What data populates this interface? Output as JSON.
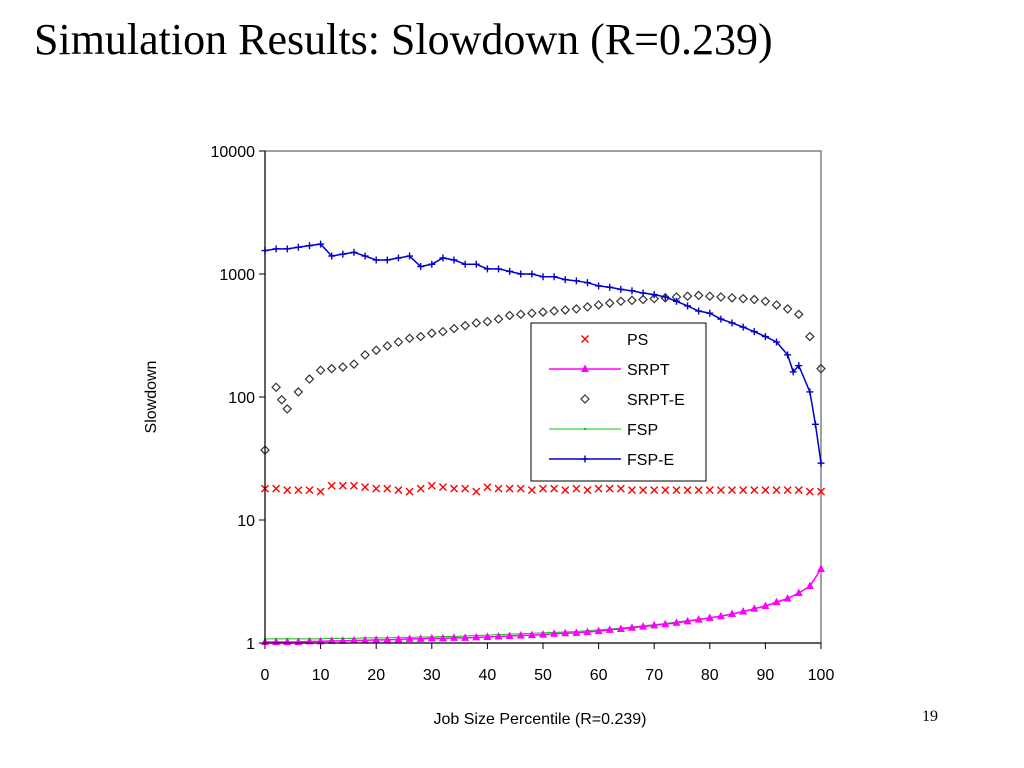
{
  "slide": {
    "title": "Simulation Results: Slowdown (R=0.239)",
    "page_number": "19"
  },
  "chart_data": {
    "type": "line",
    "title": "",
    "xlabel": "Job Size Percentile (R=0.239)",
    "ylabel": "Slowdown",
    "xlim": [
      0,
      100
    ],
    "ylim": [
      1,
      10000
    ],
    "yscale": "log",
    "x_ticks": [
      0,
      10,
      20,
      30,
      40,
      50,
      60,
      70,
      80,
      90,
      100
    ],
    "y_ticks": [
      1,
      10,
      100,
      1000,
      10000
    ],
    "grid": false,
    "legend_position": "center-right",
    "series": [
      {
        "name": "PS",
        "color": "#ff0000",
        "marker": "x",
        "line": false,
        "x": [
          0,
          2,
          4,
          6,
          8,
          10,
          12,
          14,
          16,
          18,
          20,
          22,
          24,
          26,
          28,
          30,
          32,
          34,
          36,
          38,
          40,
          42,
          44,
          46,
          48,
          50,
          52,
          54,
          56,
          58,
          60,
          62,
          64,
          66,
          68,
          70,
          72,
          74,
          76,
          78,
          80,
          82,
          84,
          86,
          88,
          90,
          92,
          94,
          96,
          98,
          100
        ],
        "values": [
          18,
          18,
          17.5,
          17.5,
          17.5,
          17,
          19,
          19,
          19,
          18.5,
          18,
          18,
          17.5,
          17,
          18,
          19,
          18.5,
          18,
          18,
          17,
          18.5,
          18,
          18,
          18,
          17.5,
          18,
          18,
          17.5,
          18,
          17.5,
          18,
          18,
          18,
          17.5,
          17.5,
          17.5,
          17.5,
          17.5,
          17.5,
          17.5,
          17.5,
          17.5,
          17.5,
          17.5,
          17.5,
          17.5,
          17.5,
          17.5,
          17.5,
          17,
          17
        ]
      },
      {
        "name": "SRPT",
        "color": "#ff00ff",
        "marker": "triangle",
        "line": true,
        "x": [
          0,
          2,
          4,
          6,
          8,
          10,
          12,
          14,
          16,
          18,
          20,
          22,
          24,
          26,
          28,
          30,
          32,
          34,
          36,
          38,
          40,
          42,
          44,
          46,
          48,
          50,
          52,
          54,
          56,
          58,
          60,
          62,
          64,
          66,
          68,
          70,
          72,
          74,
          76,
          78,
          80,
          82,
          84,
          86,
          88,
          90,
          92,
          94,
          96,
          98,
          100
        ],
        "values": [
          1.02,
          1.02,
          1.02,
          1.02,
          1.03,
          1.03,
          1.04,
          1.04,
          1.05,
          1.05,
          1.06,
          1.06,
          1.07,
          1.08,
          1.08,
          1.09,
          1.09,
          1.1,
          1.1,
          1.11,
          1.12,
          1.13,
          1.14,
          1.15,
          1.16,
          1.17,
          1.19,
          1.2,
          1.21,
          1.23,
          1.25,
          1.28,
          1.3,
          1.33,
          1.36,
          1.39,
          1.42,
          1.46,
          1.5,
          1.55,
          1.6,
          1.65,
          1.72,
          1.8,
          1.9,
          2.0,
          2.15,
          2.3,
          2.55,
          2.9,
          4.0
        ]
      },
      {
        "name": "SRPT-E",
        "color": "#333333",
        "marker": "diamond",
        "line": false,
        "x": [
          0,
          2,
          3,
          4,
          6,
          8,
          10,
          12,
          14,
          16,
          18,
          20,
          22,
          24,
          26,
          28,
          30,
          32,
          34,
          36,
          38,
          40,
          42,
          44,
          46,
          48,
          50,
          52,
          54,
          56,
          58,
          60,
          62,
          64,
          66,
          68,
          70,
          72,
          74,
          76,
          78,
          80,
          82,
          84,
          86,
          88,
          90,
          92,
          94,
          96,
          98,
          100
        ],
        "values": [
          37,
          120,
          95,
          80,
          110,
          140,
          165,
          170,
          175,
          185,
          220,
          240,
          260,
          280,
          300,
          310,
          330,
          340,
          360,
          380,
          400,
          410,
          430,
          460,
          470,
          480,
          490,
          500,
          510,
          520,
          540,
          560,
          580,
          600,
          610,
          620,
          630,
          640,
          650,
          660,
          670,
          660,
          650,
          640,
          630,
          620,
          600,
          560,
          520,
          470,
          310,
          170
        ]
      },
      {
        "name": "FSP",
        "color": "#00cc00",
        "marker": "dot",
        "line": true,
        "x": [
          0,
          2,
          4,
          6,
          8,
          10,
          12,
          14,
          16,
          18,
          20,
          22,
          24,
          26,
          28,
          30,
          32,
          34,
          36,
          38,
          40,
          42,
          44,
          46,
          48,
          50,
          52,
          54,
          56,
          58,
          60,
          62,
          64,
          66,
          68,
          70,
          72,
          74,
          76,
          78,
          80,
          82,
          84,
          86,
          88,
          90,
          92,
          94,
          96,
          98,
          100
        ],
        "values": [
          1.08,
          1.08,
          1.08,
          1.08,
          1.08,
          1.08,
          1.09,
          1.09,
          1.09,
          1.1,
          1.1,
          1.1,
          1.11,
          1.11,
          1.12,
          1.12,
          1.13,
          1.13,
          1.14,
          1.15,
          1.16,
          1.17,
          1.18,
          1.19,
          1.2,
          1.21,
          1.22,
          1.23,
          1.24,
          1.26,
          1.28,
          1.3,
          1.32,
          1.35,
          1.38,
          1.41,
          1.44,
          1.48,
          1.52,
          1.56,
          1.61,
          1.66,
          1.73,
          1.81,
          1.9,
          2.0,
          2.15,
          2.3,
          2.55,
          2.9,
          4.0
        ]
      },
      {
        "name": "FSP-E",
        "color": "#0000cc",
        "marker": "plus",
        "line": true,
        "x": [
          0,
          2,
          4,
          6,
          8,
          10,
          12,
          14,
          16,
          18,
          20,
          22,
          24,
          26,
          28,
          30,
          32,
          34,
          36,
          38,
          40,
          42,
          44,
          46,
          48,
          50,
          52,
          54,
          56,
          58,
          60,
          62,
          64,
          66,
          68,
          70,
          72,
          74,
          76,
          78,
          80,
          82,
          84,
          86,
          88,
          90,
          92,
          94,
          95,
          96,
          98,
          99,
          100
        ],
        "values": [
          1550,
          1600,
          1600,
          1650,
          1700,
          1750,
          1400,
          1450,
          1500,
          1400,
          1300,
          1300,
          1350,
          1400,
          1150,
          1200,
          1350,
          1300,
          1200,
          1200,
          1100,
          1100,
          1050,
          1000,
          1000,
          950,
          950,
          900,
          880,
          850,
          800,
          780,
          750,
          730,
          700,
          680,
          650,
          600,
          550,
          500,
          480,
          430,
          400,
          370,
          340,
          310,
          280,
          220,
          160,
          180,
          110,
          60,
          29
        ]
      }
    ]
  }
}
